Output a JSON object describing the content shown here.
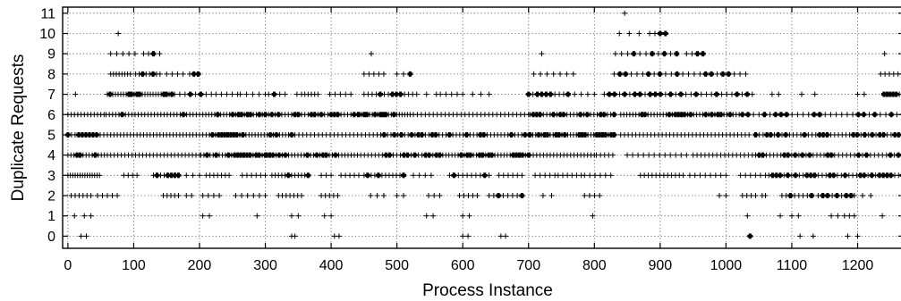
{
  "chart_data": {
    "type": "scatter",
    "title": "",
    "xlabel": "Process Instance",
    "ylabel": "Duplicate Requests",
    "xlim": [
      -8,
      1270
    ],
    "ylim": [
      -0.6,
      11.3
    ],
    "x_ticks": [
      0,
      100,
      200,
      300,
      400,
      500,
      600,
      700,
      800,
      900,
      1000,
      1100,
      1200
    ],
    "y_ticks": [
      0,
      1,
      2,
      3,
      4,
      5,
      6,
      7,
      8,
      9,
      10,
      11
    ],
    "grid": true,
    "marker": "+",
    "color": "#000000",
    "rows": [
      {
        "y": 11,
        "points": [
          [
            845,
            847,
            1,
            0
          ]
        ]
      },
      {
        "y": 10,
        "points": [
          [
            75,
            78,
            1,
            0
          ],
          [
            838,
            868,
            3,
            0
          ],
          [
            884,
            908,
            4,
            1
          ]
        ]
      },
      {
        "y": 9,
        "points": [
          [
            65,
            102,
            5,
            0
          ],
          [
            115,
            130,
            3,
            1
          ],
          [
            137,
            142,
            1,
            0
          ],
          [
            460,
            462,
            1,
            0
          ],
          [
            718,
            722,
            1,
            0
          ],
          [
            832,
            925,
            11,
            1
          ],
          [
            940,
            965,
            4,
            1
          ],
          [
            1238,
            1244,
            1,
            0
          ]
        ]
      },
      {
        "y": 8,
        "points": [
          [
            65,
            95,
            8,
            0
          ],
          [
            103,
            140,
            8,
            1
          ],
          [
            150,
            175,
            4,
            0
          ],
          [
            185,
            198,
            3,
            1
          ],
          [
            450,
            480,
            5,
            0
          ],
          [
            500,
            520,
            3,
            1
          ],
          [
            708,
            768,
            7,
            0
          ],
          [
            830,
            1030,
            24,
            1
          ],
          [
            1235,
            1268,
            6,
            0
          ]
        ]
      },
      {
        "y": 7,
        "points": [
          [
            10,
            13,
            1,
            0
          ],
          [
            60,
            162,
            26,
            1
          ],
          [
            170,
            218,
            7,
            1
          ],
          [
            225,
            258,
            5,
            0
          ],
          [
            262,
            300,
            5,
            0
          ],
          [
            305,
            322,
            3,
            1
          ],
          [
            330,
            348,
            2,
            0
          ],
          [
            355,
            380,
            6,
            0
          ],
          [
            398,
            430,
            5,
            0
          ],
          [
            450,
            530,
            14,
            1
          ],
          [
            545,
            560,
            2,
            0
          ],
          [
            566,
            600,
            5,
            0
          ],
          [
            615,
            640,
            3,
            0
          ],
          [
            700,
            760,
            10,
            1
          ],
          [
            770,
            800,
            4,
            0
          ],
          [
            815,
            1040,
            30,
            1
          ],
          [
            1070,
            1080,
            2,
            0
          ],
          [
            1115,
            1135,
            2,
            0
          ],
          [
            1200,
            1210,
            2,
            0
          ],
          [
            1240,
            1268,
            7,
            1
          ]
        ]
      },
      {
        "y": 6,
        "points": [
          [
            0,
            55,
            12,
            0
          ],
          [
            58,
            200,
            30,
            1
          ],
          [
            205,
            300,
            22,
            1
          ],
          [
            305,
            440,
            28,
            1
          ],
          [
            442,
            520,
            20,
            1
          ],
          [
            525,
            700,
            30,
            0
          ],
          [
            702,
            830,
            26,
            1
          ],
          [
            840,
            1020,
            40,
            1
          ],
          [
            1025,
            1268,
            30,
            1
          ]
        ]
      },
      {
        "y": 5,
        "points": [
          [
            0,
            60,
            12,
            1
          ],
          [
            65,
            210,
            30,
            0
          ],
          [
            215,
            340,
            28,
            1
          ],
          [
            345,
            470,
            22,
            0
          ],
          [
            470,
            700,
            45,
            1
          ],
          [
            702,
            830,
            30,
            1
          ],
          [
            840,
            1035,
            35,
            0
          ],
          [
            1045,
            1268,
            40,
            1
          ]
        ]
      },
      {
        "y": 4,
        "points": [
          [
            0,
            60,
            14,
            1
          ],
          [
            65,
            200,
            26,
            0
          ],
          [
            202,
            300,
            22,
            1
          ],
          [
            302,
            440,
            30,
            1
          ],
          [
            445,
            560,
            22,
            1
          ],
          [
            565,
            700,
            30,
            1
          ],
          [
            702,
            800,
            20,
            0
          ],
          [
            803,
            828,
            5,
            0
          ],
          [
            850,
            940,
            12,
            0
          ],
          [
            950,
            1040,
            16,
            0
          ],
          [
            1045,
            1160,
            22,
            1
          ],
          [
            1165,
            1268,
            18,
            1
          ]
        ]
      },
      {
        "y": 3,
        "points": [
          [
            0,
            48,
            14,
            0
          ],
          [
            85,
            105,
            4,
            0
          ],
          [
            130,
            168,
            8,
            1
          ],
          [
            180,
            200,
            3,
            0
          ],
          [
            210,
            245,
            7,
            0
          ],
          [
            265,
            300,
            6,
            0
          ],
          [
            310,
            365,
            12,
            1
          ],
          [
            385,
            400,
            3,
            0
          ],
          [
            415,
            442,
            5,
            0
          ],
          [
            450,
            510,
            12,
            1
          ],
          [
            525,
            552,
            4,
            0
          ],
          [
            580,
            640,
            10,
            1
          ],
          [
            655,
            690,
            6,
            0
          ],
          [
            710,
            740,
            5,
            0
          ],
          [
            745,
            780,
            6,
            0
          ],
          [
            785,
            825,
            6,
            0
          ],
          [
            870,
            935,
            12,
            0
          ],
          [
            945,
            1000,
            8,
            0
          ],
          [
            1022,
            1060,
            6,
            0
          ],
          [
            1065,
            1268,
            36,
            1
          ]
        ]
      },
      {
        "y": 2,
        "points": [
          [
            5,
            35,
            6,
            0
          ],
          [
            45,
            75,
            5,
            0
          ],
          [
            145,
            168,
            5,
            0
          ],
          [
            180,
            188,
            2,
            0
          ],
          [
            205,
            230,
            4,
            0
          ],
          [
            255,
            300,
            6,
            0
          ],
          [
            320,
            355,
            7,
            0
          ],
          [
            385,
            410,
            5,
            0
          ],
          [
            460,
            480,
            3,
            0
          ],
          [
            500,
            510,
            2,
            0
          ],
          [
            548,
            565,
            3,
            0
          ],
          [
            595,
            622,
            5,
            0
          ],
          [
            640,
            690,
            8,
            1
          ],
          [
            722,
            735,
            2,
            0
          ],
          [
            785,
            808,
            4,
            0
          ],
          [
            990,
            1000,
            2,
            0
          ],
          [
            1025,
            1045,
            4,
            0
          ],
          [
            1055,
            1060,
            2,
            0
          ],
          [
            1085,
            1130,
            8,
            1
          ],
          [
            1140,
            1190,
            8,
            1
          ],
          [
            1195,
            1220,
            3,
            0
          ]
        ]
      },
      {
        "y": 1,
        "points": [
          [
            8,
            12,
            1,
            0
          ],
          [
            25,
            35,
            2,
            0
          ],
          [
            205,
            215,
            2,
            0
          ],
          [
            285,
            290,
            1,
            0
          ],
          [
            340,
            350,
            2,
            0
          ],
          [
            390,
            400,
            2,
            0
          ],
          [
            545,
            555,
            2,
            0
          ],
          [
            600,
            610,
            2,
            0
          ],
          [
            795,
            800,
            1,
            0
          ],
          [
            1030,
            1035,
            1,
            0
          ],
          [
            1080,
            1085,
            1,
            0
          ],
          [
            1100,
            1110,
            2,
            1
          ],
          [
            1160,
            1170,
            2,
            0
          ],
          [
            1180,
            1195,
            3,
            0
          ],
          [
            1235,
            1240,
            1,
            1
          ]
        ]
      },
      {
        "y": 0,
        "points": [
          [
            20,
            28,
            2,
            0
          ],
          [
            340,
            345,
            2,
            0
          ],
          [
            405,
            412,
            2,
            0
          ],
          [
            600,
            608,
            2,
            0
          ],
          [
            658,
            665,
            2,
            0
          ],
          [
            1035,
            1038,
            1,
            1
          ],
          [
            1110,
            1115,
            1,
            0
          ],
          [
            1130,
            1135,
            1,
            0
          ],
          [
            1185,
            1200,
            2,
            1
          ]
        ]
      }
    ]
  }
}
